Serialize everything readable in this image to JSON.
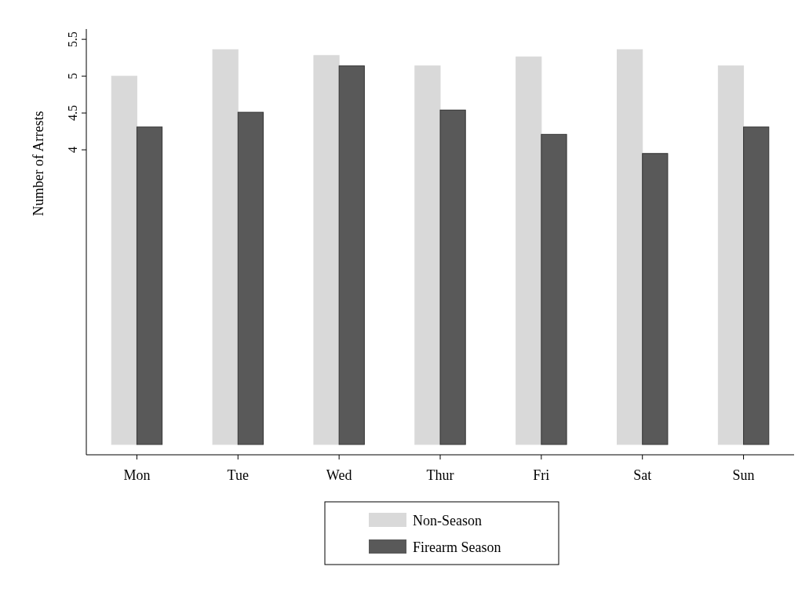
{
  "chart_data": {
    "type": "bar",
    "ylabel": "Number of Arrests",
    "categories": [
      "Mon",
      "Tue",
      "Wed",
      "Thur",
      "Fri",
      "Sat",
      "Sun"
    ],
    "series": [
      {
        "name": "Non-Season",
        "color": "#d9d9d9",
        "values": [
          5.0,
          5.36,
          5.28,
          5.14,
          5.26,
          5.36,
          5.14
        ]
      },
      {
        "name": "Firearm Season",
        "color": "#595959",
        "values": [
          4.31,
          4.51,
          5.14,
          4.54,
          4.21,
          3.95,
          4.31
        ]
      }
    ],
    "ylim": [
      -0.14,
      5.64
    ],
    "yticks": [
      4,
      4.5,
      5,
      5.5
    ],
    "grid": false,
    "legend": "bottom"
  }
}
